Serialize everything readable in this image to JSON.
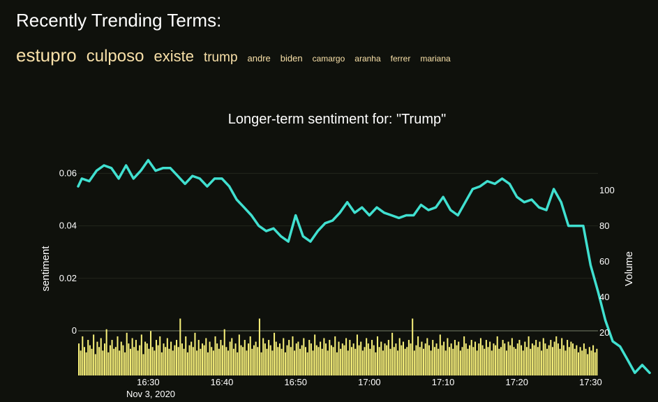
{
  "heading": "Recently Trending Terms:",
  "terms": [
    {
      "label": "estupro",
      "size": 26
    },
    {
      "label": "culposo",
      "size": 24
    },
    {
      "label": "existe",
      "size": 22
    },
    {
      "label": "trump",
      "size": 19
    },
    {
      "label": "andre",
      "size": 13
    },
    {
      "label": "biden",
      "size": 13
    },
    {
      "label": "camargo",
      "size": 12
    },
    {
      "label": "aranha",
      "size": 12
    },
    {
      "label": "ferrer",
      "size": 12
    },
    {
      "label": "mariana",
      "size": 12
    }
  ],
  "colors": {
    "background": "#0f110c",
    "sentiment_line": "#40e0d0",
    "volume_bars": "#f7f07a",
    "term_text": "#f8e0a8"
  },
  "chart_data": {
    "type": "line",
    "title": "Longer-term sentiment for: \"Trump\"",
    "x_start": "2020-11-03 16:20:30",
    "x_end": "2020-11-03 17:31:00",
    "x_ticks": [
      "16:30",
      "16:40",
      "16:50",
      "17:00",
      "17:10",
      "17:20",
      "17:30"
    ],
    "x_subtick": "Nov 3, 2020",
    "y_left": {
      "label": "sentiment",
      "ticks": [
        "0",
        "0.02",
        "0.04",
        "0.06"
      ],
      "range": [
        -0.017,
        0.067
      ]
    },
    "y_right": {
      "label": "Volume",
      "ticks": [
        "20",
        "40",
        "60",
        "80",
        "100"
      ],
      "range": [
        -4,
        120
      ]
    },
    "grid": true,
    "series": [
      {
        "axis": "left",
        "style": "line",
        "points": [
          [
            "16:20:30",
            0.055
          ],
          [
            "16:21:00",
            0.058
          ],
          [
            "16:22:00",
            0.057
          ],
          [
            "16:23:00",
            0.061
          ],
          [
            "16:24:00",
            0.063
          ],
          [
            "16:25:00",
            0.062
          ],
          [
            "16:26:00",
            0.058
          ],
          [
            "16:27:00",
            0.063
          ],
          [
            "16:28:00",
            0.058
          ],
          [
            "16:29:00",
            0.061
          ],
          [
            "16:30:00",
            0.065
          ],
          [
            "16:31:00",
            0.061
          ],
          [
            "16:32:00",
            0.062
          ],
          [
            "16:33:00",
            0.062
          ],
          [
            "16:34:00",
            0.059
          ],
          [
            "16:35:00",
            0.056
          ],
          [
            "16:36:00",
            0.059
          ],
          [
            "16:37:00",
            0.058
          ],
          [
            "16:38:00",
            0.055
          ],
          [
            "16:39:00",
            0.058
          ],
          [
            "16:40:00",
            0.058
          ],
          [
            "16:41:00",
            0.055
          ],
          [
            "16:42:00",
            0.05
          ],
          [
            "16:43:00",
            0.047
          ],
          [
            "16:44:00",
            0.044
          ],
          [
            "16:45:00",
            0.04
          ],
          [
            "16:46:00",
            0.038
          ],
          [
            "16:47:00",
            0.039
          ],
          [
            "16:48:00",
            0.036
          ],
          [
            "16:49:00",
            0.034
          ],
          [
            "16:50:00",
            0.044
          ],
          [
            "16:51:00",
            0.036
          ],
          [
            "16:52:00",
            0.034
          ],
          [
            "16:53:00",
            0.038
          ],
          [
            "16:54:00",
            0.041
          ],
          [
            "16:55:00",
            0.042
          ],
          [
            "16:56:00",
            0.045
          ],
          [
            "16:57:00",
            0.049
          ],
          [
            "16:58:00",
            0.045
          ],
          [
            "16:59:00",
            0.047
          ],
          [
            "17:00:00",
            0.044
          ],
          [
            "17:01:00",
            0.047
          ],
          [
            "17:02:00",
            0.045
          ],
          [
            "17:03:00",
            0.044
          ],
          [
            "17:04:00",
            0.043
          ],
          [
            "17:05:00",
            0.044
          ],
          [
            "17:06:00",
            0.044
          ],
          [
            "17:07:00",
            0.048
          ],
          [
            "17:08:00",
            0.046
          ],
          [
            "17:09:00",
            0.047
          ],
          [
            "17:10:00",
            0.051
          ],
          [
            "17:11:00",
            0.046
          ],
          [
            "17:12:00",
            0.044
          ],
          [
            "17:13:00",
            0.049
          ],
          [
            "17:14:00",
            0.054
          ],
          [
            "17:15:00",
            0.055
          ],
          [
            "17:16:00",
            0.057
          ],
          [
            "17:17:00",
            0.056
          ],
          [
            "17:18:00",
            0.058
          ],
          [
            "17:19:00",
            0.056
          ],
          [
            "17:20:00",
            0.051
          ],
          [
            "17:21:00",
            0.049
          ],
          [
            "17:22:00",
            0.05
          ],
          [
            "17:23:00",
            0.047
          ],
          [
            "17:24:00",
            0.046
          ],
          [
            "17:25:00",
            0.054
          ],
          [
            "17:26:00",
            0.049
          ],
          [
            "17:27:00",
            0.04
          ],
          [
            "17:28:00",
            0.04
          ],
          [
            "17:29:00",
            0.04
          ],
          [
            "17:30:00",
            0.025
          ],
          [
            "17:31:00",
            0.015
          ],
          [
            "17:32:00",
            0.004
          ],
          [
            "17:33:00",
            -0.004
          ],
          [
            "17:34:00",
            -0.006
          ],
          [
            "17:35:00",
            -0.011
          ],
          [
            "17:36:00",
            -0.016
          ],
          [
            "17:37:00",
            -0.013
          ],
          [
            "17:38:00",
            -0.016
          ]
        ]
      },
      {
        "axis": "right",
        "style": "bar",
        "description": "per-interval tweet volume, mostly 8-18 with spikes to ~28",
        "values": [
          14,
          10,
          18,
          12,
          9,
          16,
          13,
          11,
          19,
          8,
          15,
          12,
          17,
          10,
          14,
          22,
          9,
          13,
          16,
          11,
          12,
          18,
          10,
          15,
          13,
          9,
          20,
          14,
          11,
          17,
          12,
          16,
          10,
          13,
          19,
          8,
          15,
          14,
          11,
          21,
          12,
          10,
          16,
          13,
          18,
          9,
          14,
          12,
          17,
          11,
          15,
          10,
          13,
          16,
          12,
          28,
          14,
          11,
          18,
          9,
          13,
          15,
          12,
          20,
          10,
          16,
          11,
          14,
          13,
          17,
          9,
          15,
          12,
          10,
          18,
          14,
          11,
          16,
          13,
          22,
          12,
          10,
          15,
          17,
          11,
          14,
          9,
          19,
          13,
          12,
          16,
          10,
          14,
          18,
          11,
          13,
          15,
          12,
          28,
          9,
          17,
          14,
          11,
          16,
          13,
          10,
          20,
          15,
          12,
          14,
          11,
          17,
          9,
          13,
          16,
          12,
          18,
          10,
          14,
          15,
          11,
          13,
          17,
          12,
          9,
          16,
          14,
          10,
          19,
          13,
          12,
          15,
          11,
          17,
          14,
          10,
          16,
          13,
          12,
          18,
          9,
          15,
          11,
          14,
          13,
          17,
          10,
          16,
          12,
          14,
          11,
          19,
          13,
          15,
          10,
          12,
          17,
          14,
          11,
          16,
          13,
          9,
          18,
          12,
          15,
          10,
          14,
          13,
          16,
          11,
          20,
          12,
          14,
          10,
          17,
          13,
          15,
          11,
          12,
          16,
          14,
          28,
          10,
          13,
          18,
          12,
          15,
          11,
          14,
          17,
          13,
          10,
          16,
          12,
          14,
          11,
          19,
          13,
          15,
          10,
          17,
          12,
          14,
          11,
          16,
          13,
          15,
          10,
          12,
          18,
          14,
          11,
          13,
          16,
          12,
          15,
          10,
          14,
          17,
          13,
          11,
          16,
          12,
          15,
          10,
          14,
          13,
          18,
          11,
          12,
          16,
          14,
          10,
          15,
          13,
          17,
          12,
          11,
          14,
          16,
          13,
          10,
          15,
          12,
          18,
          11,
          14,
          13,
          16,
          12,
          15,
          10,
          17,
          14,
          11,
          13,
          16,
          12,
          15,
          18,
          14,
          11,
          17,
          13,
          10,
          16,
          12,
          15,
          14,
          11,
          13,
          9,
          12,
          10,
          14,
          11,
          8,
          12,
          10,
          13,
          9,
          11
        ]
      }
    ]
  }
}
